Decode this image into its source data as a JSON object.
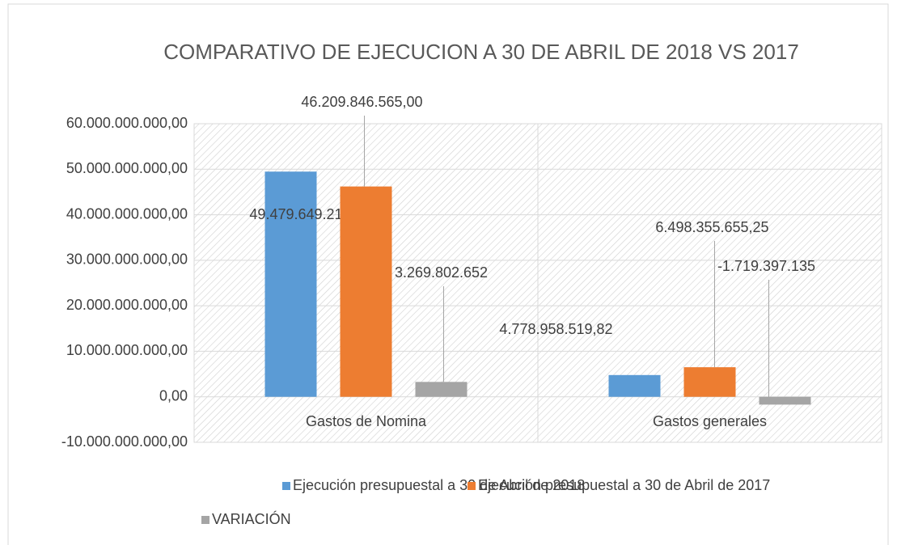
{
  "chart_data": {
    "type": "bar",
    "title": "COMPARATIVO  DE EJECUCION  A 30  DE ABRIL  DE 2018 VS 2017",
    "categories": [
      "Gastos de Nomina",
      "Gastos generales"
    ],
    "series": [
      {
        "name": "Ejecución presupuestal a 30 de Abril de 2018",
        "color": "#5b9bd5",
        "values": [
          49479649217,
          4778958519.82
        ],
        "value_labels": [
          "49.479.649.217,00",
          "4.778.958.519,82"
        ]
      },
      {
        "name": "Ejecución presupuestal a 30 de Abril de 2017",
        "color": "#ed7d31",
        "values": [
          46209846565,
          6498355655.25
        ],
        "value_labels": [
          "46.209.846.565,00",
          "6.498.355.655,25"
        ]
      },
      {
        "name": "VARIACIÓN",
        "color": "#a5a5a5",
        "values": [
          3269802652,
          -1719397135
        ],
        "value_labels": [
          "3.269.802.652",
          "-1.719.397.135"
        ]
      }
    ],
    "ylim": [
      -10000000000,
      60000000000
    ],
    "yticks": [
      {
        "value": -10000000000,
        "label": "-10.000.000.000,00"
      },
      {
        "value": 0,
        "label": "0,00"
      },
      {
        "value": 10000000000,
        "label": "10.000.000.000,00"
      },
      {
        "value": 20000000000,
        "label": "20.000.000.000,00"
      },
      {
        "value": 30000000000,
        "label": "30.000.000.000,00"
      },
      {
        "value": 40000000000,
        "label": "40.000.000.000,00"
      },
      {
        "value": 50000000000,
        "label": "50.000.000.000,00"
      },
      {
        "value": 60000000000,
        "label": "60.000.000.000,00"
      }
    ],
    "grid": true,
    "legend": "bottom"
  }
}
